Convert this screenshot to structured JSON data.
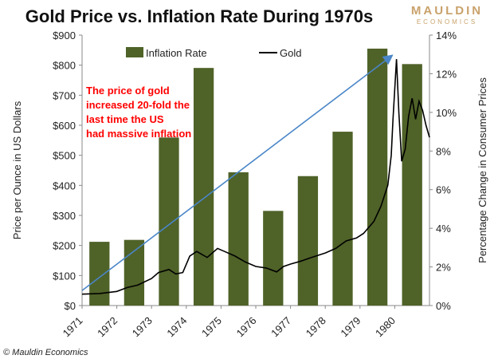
{
  "chart_data": {
    "type": "bar+line",
    "title": "Gold Price vs. Inflation Rate During 1970s",
    "ylabel_left": "Price per Ounce in US Dollars",
    "ylabel_right": "Percentage Change in Consumer Prices",
    "left_ylim": [
      0,
      900
    ],
    "left_ticks": [
      "$0",
      "$100",
      "$200",
      "$300",
      "$400",
      "$500",
      "$600",
      "$700",
      "$800",
      "$900"
    ],
    "right_ylim": [
      0,
      14
    ],
    "right_ticks": [
      "0%",
      "2%",
      "4%",
      "6%",
      "8%",
      "10%",
      "12%",
      "14%"
    ],
    "xlim": [
      1971,
      1981
    ],
    "x_ticks": [
      "1971",
      "1972",
      "1973",
      "1974",
      "1975",
      "1976",
      "1977",
      "1978",
      "1979",
      "1980"
    ],
    "legend": {
      "placement": "top",
      "bar_label": "Inflation Rate",
      "line_label": "Gold"
    },
    "inflation": {
      "name": "Inflation Rate",
      "color": "#4f6228",
      "years": [
        1971,
        1972,
        1973,
        1974,
        1975,
        1976,
        1977,
        1978,
        1979,
        1980
      ],
      "values": [
        3.3,
        3.4,
        8.7,
        12.3,
        6.9,
        4.9,
        6.7,
        9.0,
        13.3,
        12.5
      ]
    },
    "gold": {
      "name": "Gold",
      "color": "#000000",
      "x": [
        1971.0,
        1971.5,
        1972.0,
        1972.3,
        1972.6,
        1973.0,
        1973.2,
        1973.5,
        1973.7,
        1973.9,
        1974.1,
        1974.3,
        1974.6,
        1974.9,
        1975.1,
        1975.4,
        1975.7,
        1976.0,
        1976.3,
        1976.6,
        1976.8,
        1977.0,
        1977.3,
        1977.6,
        1978.0,
        1978.3,
        1978.6,
        1978.9,
        1979.1,
        1979.4,
        1979.6,
        1979.8,
        1979.9,
        1979.95,
        1980.05,
        1980.12,
        1980.2,
        1980.3,
        1980.4,
        1980.5,
        1980.6,
        1980.7,
        1980.8,
        1980.9,
        1981.0
      ],
      "y": [
        38,
        40,
        47,
        60,
        68,
        90,
        110,
        120,
        105,
        110,
        165,
        180,
        160,
        190,
        180,
        165,
        145,
        130,
        125,
        112,
        130,
        138,
        148,
        160,
        175,
        190,
        215,
        225,
        240,
        280,
        330,
        400,
        500,
        620,
        820,
        640,
        480,
        520,
        630,
        690,
        620,
        680,
        650,
        600,
        560
      ]
    },
    "trend_line": {
      "color": "#4a86c8",
      "from": [
        1971,
        50
      ],
      "to": [
        1979.9,
        830
      ]
    },
    "annotation": {
      "lines": [
        "The price of gold",
        "increased 20-fold the",
        "last time the US",
        "had massive inflation"
      ],
      "color": "#ff0000"
    }
  },
  "logo": {
    "name": "MAULDIN",
    "sub": "ECONOMICS"
  },
  "copyright": "© Mauldin Economics"
}
